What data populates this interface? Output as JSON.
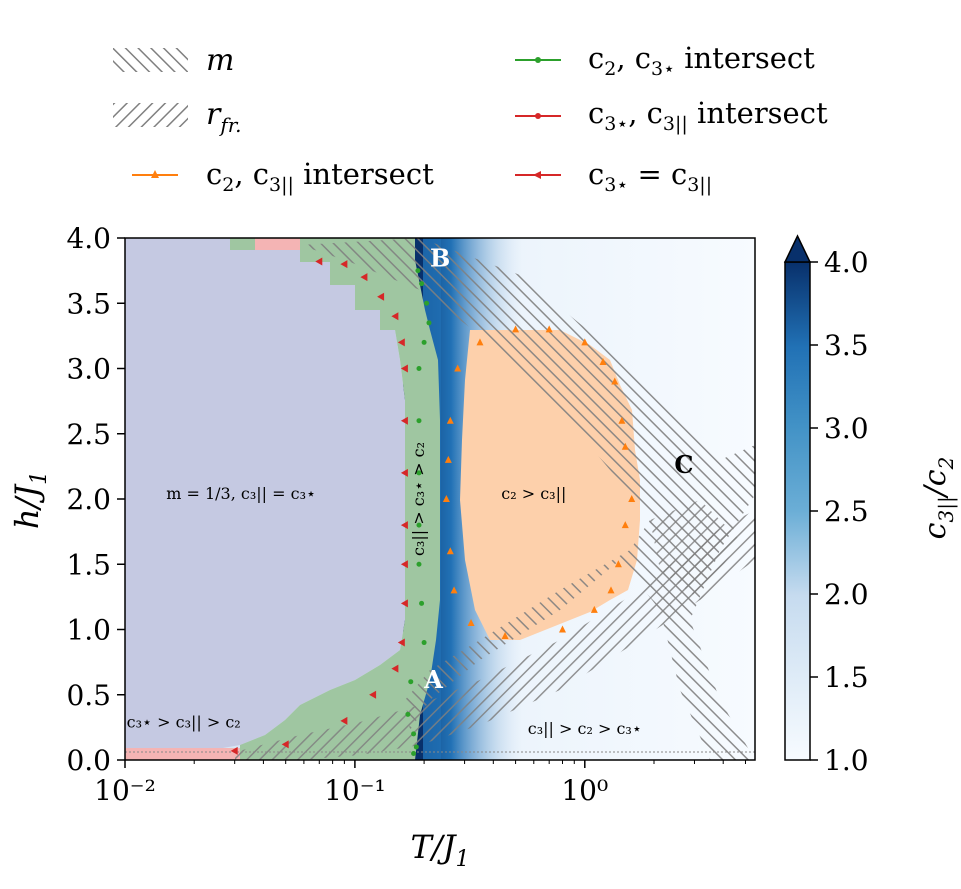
{
  "chart_data": {
    "type": "heatmap",
    "xlabel": "T/J₁",
    "ylabel": "h/J₁",
    "x_scale": "log",
    "xlim": [
      0.01,
      5.5
    ],
    "ylim": [
      0.0,
      4.0
    ],
    "x_ticks": [
      0.01,
      0.1,
      1
    ],
    "x_tick_labels": [
      "10⁻²",
      "10⁻¹",
      "10⁰"
    ],
    "y_ticks": [
      0.0,
      0.5,
      1.0,
      1.5,
      2.0,
      2.5,
      3.0,
      3.5,
      4.0
    ],
    "y_tick_labels": [
      "0.0",
      "0.5",
      "1.0",
      "1.5",
      "2.0",
      "2.5",
      "3.0",
      "3.5",
      "4.0"
    ],
    "colorbar": {
      "label": "c₃||/c₂",
      "range": [
        1.0,
        4.0
      ],
      "ticks": [
        1.0,
        1.5,
        2.0,
        2.5,
        3.0,
        3.5,
        4.0
      ],
      "tick_labels": [
        "1.0",
        "1.5",
        "2.0",
        "2.5",
        "3.0",
        "3.5",
        "4.0"
      ],
      "extend": "max",
      "colormap": "Blues"
    },
    "legend": {
      "placement": "above plot",
      "entries": [
        {
          "label": "m",
          "style": "hatch-backslash",
          "color": "#808080"
        },
        {
          "label": "c₂, c₃⋆ intersect",
          "style": "line-dot",
          "color": "#2ca02c"
        },
        {
          "label": "r_fr.",
          "style": "hatch-slash",
          "color": "#808080"
        },
        {
          "label": "c₃⋆, c₃|| intersect",
          "style": "line-dot",
          "color": "#d62728"
        },
        {
          "label": "c₂, c₃|| intersect",
          "style": "line-triangle-up",
          "color": "#ff7f0e"
        },
        {
          "label": "c₃⋆ = c₃||",
          "style": "line-triangle-left",
          "color": "#d62728"
        }
      ]
    },
    "annotations": [
      {
        "text": "m = 1/3, c₃|| = c₃⋆",
        "x": 0.032,
        "y": 2.0
      },
      {
        "text": "c₃|| > c₃⋆ > c₂",
        "x": 0.2,
        "y": 2.0,
        "rotation": -90
      },
      {
        "text": "c₂ > c₃||",
        "x": 0.6,
        "y": 2.0
      },
      {
        "text": "c₃⋆ > c₃|| > c₂",
        "x": 0.018,
        "y": 0.25
      },
      {
        "text": "c₃|| > c₂ > c₃⋆",
        "x": 1.0,
        "y": 0.2
      },
      {
        "text": "A",
        "x": 0.22,
        "y": 0.55,
        "color": "#ffffff"
      },
      {
        "text": "B",
        "x": 0.235,
        "y": 3.78,
        "color": "#ffffff"
      },
      {
        "text": "C",
        "x": 2.7,
        "y": 2.2,
        "color": "#000000"
      }
    ],
    "region_colors": {
      "m_one_third": "#c5c9e2",
      "c3par_gt_c3star_gt_c2": "#9fc6a1",
      "c2_gt_c3par": "#fdd0ab",
      "c3star_gt_c3par_gt_c2": "#f4b4b4"
    },
    "series": [
      {
        "name": "c₂, c₃⋆ intersect",
        "marker": "dot",
        "color": "#2ca02c",
        "points": [
          [
            0.18,
            0.05
          ],
          [
            0.185,
            0.1
          ],
          [
            0.18,
            0.2
          ],
          [
            0.17,
            0.35
          ],
          [
            0.175,
            0.6
          ],
          [
            0.2,
            0.9
          ],
          [
            0.195,
            1.2
          ],
          [
            0.19,
            1.5
          ],
          [
            0.19,
            1.8
          ],
          [
            0.19,
            2.2
          ],
          [
            0.19,
            2.6
          ],
          [
            0.19,
            3.0
          ],
          [
            0.2,
            3.2
          ],
          [
            0.21,
            3.35
          ],
          [
            0.205,
            3.5
          ],
          [
            0.195,
            3.65
          ],
          [
            0.188,
            3.75
          ]
        ]
      },
      {
        "name": "c₃⋆ = c₃||",
        "marker": "triangle-left",
        "color": "#d62728",
        "points": [
          [
            0.03,
            0.07
          ],
          [
            0.05,
            0.12
          ],
          [
            0.09,
            0.3
          ],
          [
            0.12,
            0.5
          ],
          [
            0.15,
            0.7
          ],
          [
            0.16,
            0.9
          ],
          [
            0.165,
            1.2
          ],
          [
            0.165,
            1.5
          ],
          [
            0.165,
            1.8
          ],
          [
            0.165,
            2.2
          ],
          [
            0.165,
            2.6
          ],
          [
            0.165,
            3.0
          ],
          [
            0.16,
            3.2
          ],
          [
            0.15,
            3.4
          ],
          [
            0.13,
            3.55
          ],
          [
            0.11,
            3.7
          ],
          [
            0.09,
            3.8
          ],
          [
            0.07,
            3.82
          ]
        ]
      },
      {
        "name": "c₂, c₃|| intersect",
        "marker": "triangle-up",
        "color": "#ff7f0e",
        "points": [
          [
            0.25,
            2.0
          ],
          [
            0.26,
            1.6
          ],
          [
            0.27,
            1.3
          ],
          [
            0.32,
            1.05
          ],
          [
            0.45,
            0.95
          ],
          [
            0.8,
            1.0
          ],
          [
            1.1,
            1.15
          ],
          [
            1.3,
            1.3
          ],
          [
            1.4,
            1.5
          ],
          [
            1.5,
            1.8
          ],
          [
            1.6,
            2.0
          ],
          [
            1.5,
            2.4
          ],
          [
            1.45,
            2.6
          ],
          [
            1.35,
            2.9
          ],
          [
            1.2,
            3.05
          ],
          [
            1.0,
            3.2
          ],
          [
            0.7,
            3.3
          ],
          [
            0.5,
            3.3
          ],
          [
            0.35,
            3.2
          ],
          [
            0.28,
            3.0
          ],
          [
            0.26,
            2.6
          ],
          [
            0.255,
            2.3
          ]
        ]
      },
      {
        "name": "c₃⋆, c₃|| intersect",
        "marker": "dot",
        "color": "#d62728",
        "points": []
      }
    ]
  }
}
